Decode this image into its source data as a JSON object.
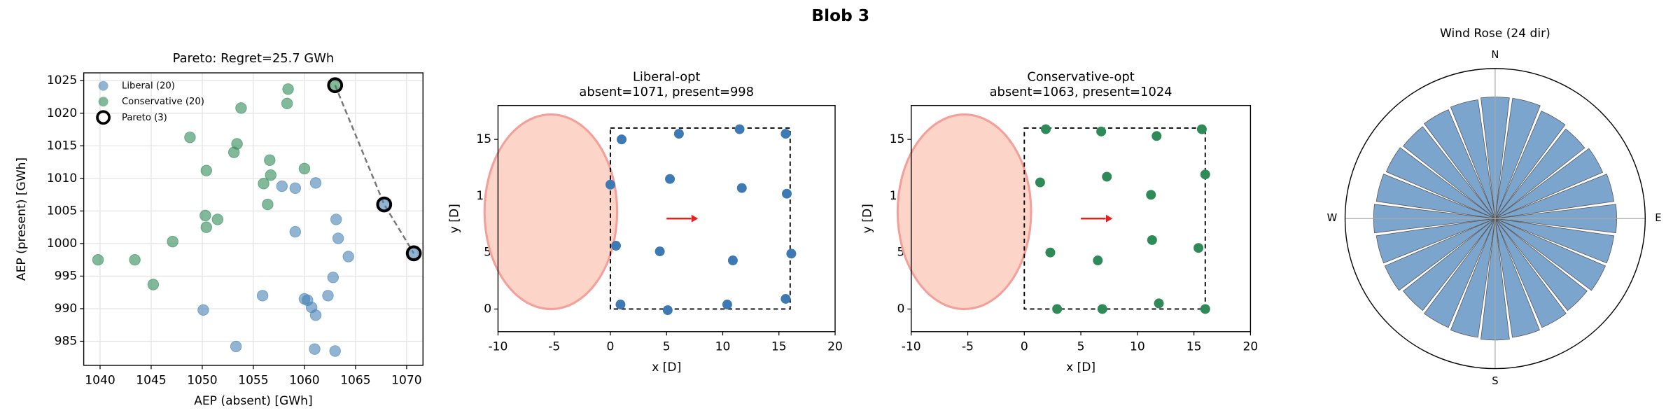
{
  "suptitle": "Blob 3",
  "chart_data": [
    {
      "type": "scatter",
      "title": "Pareto: Regret=25.7 GWh",
      "xlabel": "AEP (absent) [GWh]",
      "ylabel": "AEP (present) [GWh]",
      "xlim": [
        1038.4,
        1071.6
      ],
      "ylim": [
        981.3,
        1026.2
      ],
      "xticks": [
        1040,
        1045,
        1050,
        1055,
        1060,
        1065,
        1070
      ],
      "yticks": [
        985,
        990,
        995,
        1000,
        1005,
        1010,
        1015,
        1020,
        1025
      ],
      "grid": true,
      "legend": "upper left",
      "series": [
        {
          "name": "Liberal (20)",
          "color": "#4682b4",
          "marker": "dot",
          "x": [
            1057.8,
            1059.1,
            1061.1,
            1059.1,
            1063.1,
            1063.3,
            1064.3,
            1062.8,
            1062.3,
            1060.0,
            1060.7,
            1061.1,
            1055.9,
            1050.1,
            1053.3,
            1061.0,
            1063.0,
            1067.7,
            1070.6,
            1060.3
          ],
          "y": [
            1008.8,
            1008.5,
            1009.3,
            1001.8,
            1003.7,
            1000.8,
            998.0,
            994.8,
            992.0,
            991.5,
            990.2,
            989.0,
            992.0,
            989.8,
            984.2,
            983.8,
            983.5,
            1006.0,
            998.5,
            991.3
          ]
        },
        {
          "name": "Conservative (20)",
          "color": "#2e8b57",
          "marker": "dot",
          "x": [
            1062.9,
            1058.4,
            1053.8,
            1058.3,
            1048.8,
            1053.4,
            1053.1,
            1056.6,
            1060.0,
            1050.4,
            1056.7,
            1056.0,
            1056.4,
            1050.3,
            1051.5,
            1050.4,
            1047.1,
            1039.8,
            1043.4,
            1045.2
          ],
          "y": [
            1024.3,
            1023.7,
            1020.8,
            1021.5,
            1016.3,
            1015.3,
            1014.0,
            1012.8,
            1011.5,
            1011.2,
            1010.5,
            1009.2,
            1006.0,
            1004.3,
            1003.7,
            1002.5,
            1000.3,
            997.5,
            997.5,
            993.7
          ]
        },
        {
          "name": "Pareto (3)",
          "color": "#000000",
          "marker": "ring",
          "line": "dashed",
          "x": [
            1063.0,
            1067.8,
            1070.7
          ],
          "y": [
            1024.3,
            1006.0,
            998.5
          ]
        }
      ]
    },
    {
      "type": "scatter",
      "title": "Liberal-opt",
      "subtitle": "absent=1071, present=998",
      "xlabel": "x [D]",
      "ylabel": "y [D]",
      "xlim": [
        -10,
        20
      ],
      "ylim": [
        -2,
        18
      ],
      "xticks": [
        -10,
        -5,
        0,
        5,
        10,
        15,
        20
      ],
      "yticks": [
        0,
        5,
        10,
        15
      ],
      "grid": false,
      "series": [
        {
          "color": "#3d79b2",
          "marker": "solid",
          "x": [
            1.0,
            6.1,
            11.5,
            15.6,
            0.0,
            5.3,
            11.7,
            15.7,
            0.5,
            4.4,
            10.9,
            16.1,
            0.9,
            5.1,
            10.4,
            15.6
          ],
          "y": [
            15.0,
            15.5,
            15.9,
            15.5,
            11.0,
            11.5,
            10.7,
            10.2,
            5.6,
            5.1,
            4.3,
            4.9,
            0.4,
            -0.1,
            0.4,
            0.9
          ]
        }
      ]
    },
    {
      "type": "scatter",
      "title": "Conservative-opt",
      "subtitle": "absent=1063, present=1024",
      "xlabel": "x [D]",
      "ylabel": "y [D]",
      "xlim": [
        -10,
        20
      ],
      "ylim": [
        -2,
        18
      ],
      "xticks": [
        -10,
        -5,
        0,
        5,
        10,
        15,
        20
      ],
      "yticks": [
        0,
        5,
        10,
        15
      ],
      "grid": false,
      "series": [
        {
          "color": "#2e8b57",
          "marker": "solid",
          "x": [
            1.9,
            6.8,
            11.7,
            15.7,
            1.4,
            7.3,
            11.2,
            16.0,
            2.3,
            6.5,
            11.3,
            15.4,
            2.9,
            6.9,
            11.9,
            16.0
          ],
          "y": [
            15.9,
            15.7,
            15.3,
            15.9,
            11.2,
            11.7,
            10.1,
            11.9,
            5.0,
            4.3,
            6.1,
            5.4,
            0.0,
            0.0,
            0.5,
            0.0
          ]
        }
      ]
    },
    {
      "type": "polar_bar",
      "title": "Wind Rose (24 dir)",
      "color": "#5b8ec2",
      "rlim": [
        0,
        1
      ],
      "direction_labels": [
        {
          "value": 0,
          "label": "N"
        },
        {
          "value": 90,
          "label": "E"
        },
        {
          "value": 180,
          "label": "S"
        },
        {
          "value": 270,
          "label": "W"
        }
      ],
      "values": [
        0.81,
        0.81,
        0.78,
        0.76,
        0.78,
        0.8,
        0.81,
        0.8,
        0.8,
        0.78,
        0.79,
        0.8,
        0.81,
        0.8,
        0.79,
        0.78,
        0.8,
        0.8,
        0.81,
        0.8,
        0.79,
        0.78,
        0.79,
        0.8
      ]
    }
  ]
}
